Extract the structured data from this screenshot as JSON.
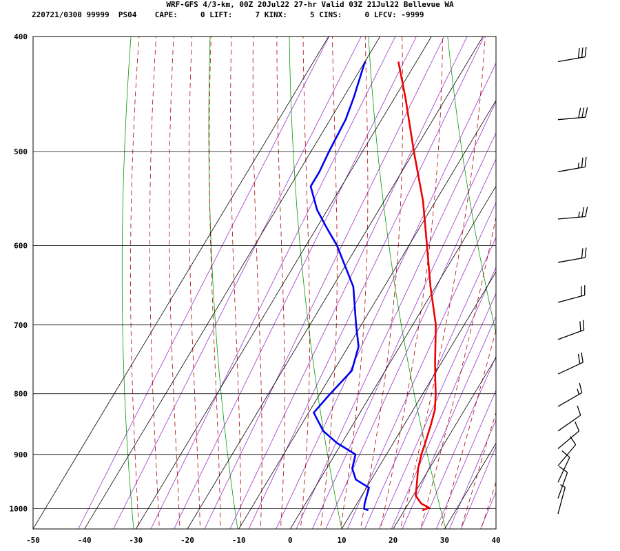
{
  "header": {
    "title": "WRF-GFS 4/3-km, 00Z 20Jul22 27-hr Valid 03Z 21Jul22 Bellevue WA",
    "indices": "220721/0300 99999  PS04    CAPE:     0 LIFT:     7 KINX:     5 CINS:     0 LFCV: -9999"
  },
  "chart_data": {
    "type": "line",
    "chart_kind": "skew-T log-p sounding",
    "x_axis": {
      "range": [
        -50,
        40
      ],
      "ticks": [
        "-50",
        "-40",
        "-30",
        "-20",
        "-10",
        "0",
        "10",
        "20",
        "30",
        "40"
      ]
    },
    "y_axis": {
      "scale": "log",
      "range": [
        1040,
        400
      ],
      "ticks": [
        "400",
        "500",
        "600",
        "700",
        "800",
        "900",
        "1000"
      ]
    },
    "grid": true,
    "series": [
      {
        "color": "#ee0000",
        "points": [
          [
            1003,
            23.5
          ],
          [
            998,
            24.5
          ],
          [
            990,
            22.5
          ],
          [
            975,
            20.5
          ],
          [
            950,
            19.2
          ],
          [
            925,
            17.8
          ],
          [
            900,
            16.8
          ],
          [
            880,
            16.2
          ],
          [
            850,
            15.2
          ],
          [
            825,
            14.2
          ],
          [
            800,
            12.5
          ],
          [
            775,
            10.5
          ],
          [
            750,
            8.5
          ],
          [
            700,
            4.5
          ],
          [
            650,
            -1
          ],
          [
            600,
            -6.5
          ],
          [
            550,
            -12.5
          ],
          [
            500,
            -20
          ],
          [
            450,
            -28
          ],
          [
            420,
            -33.5
          ]
        ]
      },
      {
        "color": "#0000ee",
        "points": [
          [
            1003,
            13
          ],
          [
            1000,
            12
          ],
          [
            990,
            11.5
          ],
          [
            975,
            11
          ],
          [
            960,
            10.5
          ],
          [
            945,
            7
          ],
          [
            925,
            5
          ],
          [
            900,
            4
          ],
          [
            880,
            -1
          ],
          [
            860,
            -5
          ],
          [
            830,
            -9
          ],
          [
            800,
            -8
          ],
          [
            765,
            -6.5
          ],
          [
            730,
            -8
          ],
          [
            700,
            -11
          ],
          [
            650,
            -16
          ],
          [
            600,
            -24
          ],
          [
            580,
            -28
          ],
          [
            560,
            -32
          ],
          [
            535,
            -36
          ],
          [
            520,
            -36
          ],
          [
            500,
            -36.5
          ],
          [
            470,
            -37
          ],
          [
            450,
            -38
          ],
          [
            420,
            -40
          ]
        ]
      }
    ],
    "wind_barbs": [
      {
        "p": 420,
        "dir": 260,
        "spd": 30
      },
      {
        "p": 470,
        "dir": 265,
        "spd": 30
      },
      {
        "p": 520,
        "dir": 260,
        "spd": 25
      },
      {
        "p": 570,
        "dir": 265,
        "spd": 25
      },
      {
        "p": 620,
        "dir": 260,
        "spd": 20
      },
      {
        "p": 670,
        "dir": 255,
        "spd": 20
      },
      {
        "p": 720,
        "dir": 250,
        "spd": 20
      },
      {
        "p": 770,
        "dir": 245,
        "spd": 20
      },
      {
        "p": 820,
        "dir": 240,
        "spd": 15
      },
      {
        "p": 860,
        "dir": 235,
        "spd": 10
      },
      {
        "p": 890,
        "dir": 230,
        "spd": 10
      },
      {
        "p": 920,
        "dir": 220,
        "spd": 10
      },
      {
        "p": 950,
        "dir": 205,
        "spd": 10
      },
      {
        "p": 980,
        "dir": 200,
        "spd": 10
      },
      {
        "p": 1010,
        "dir": 195,
        "spd": 5
      }
    ]
  }
}
